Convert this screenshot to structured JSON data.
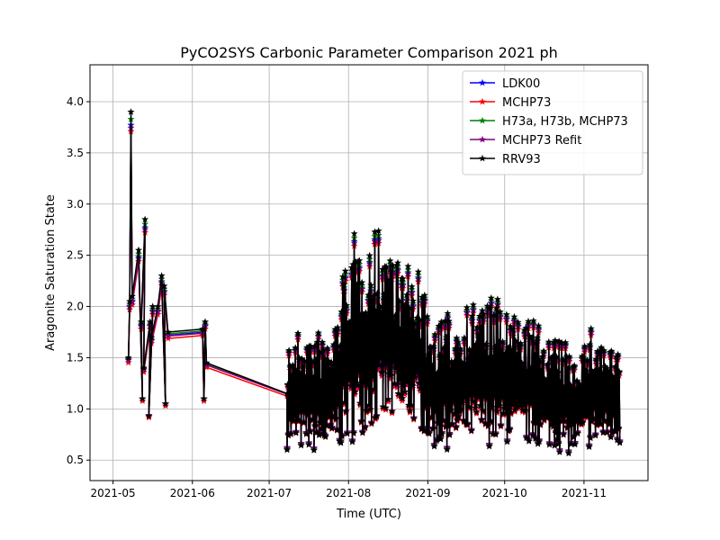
{
  "chart_data": {
    "type": "line",
    "title": "PyCO2SYS Carbonic Parameter Comparison 2021 ph",
    "xlabel": "Time (UTC)",
    "ylabel": "Aragonite Saturation State",
    "xlim": [
      "2021-04-22",
      "2021-11-26"
    ],
    "ylim": [
      0.3,
      4.36
    ],
    "grid": true,
    "legend_position": "top-right",
    "marker": "star",
    "x_ticks": [
      {
        "label": "2021-05",
        "date": "2021-05-01"
      },
      {
        "label": "2021-06",
        "date": "2021-06-01"
      },
      {
        "label": "2021-07",
        "date": "2021-07-01"
      },
      {
        "label": "2021-08",
        "date": "2021-08-01"
      },
      {
        "label": "2021-09",
        "date": "2021-09-01"
      },
      {
        "label": "2021-10",
        "date": "2021-10-01"
      },
      {
        "label": "2021-11",
        "date": "2021-11-01"
      }
    ],
    "y_ticks": [
      0.5,
      1.0,
      1.5,
      2.0,
      2.5,
      3.0,
      3.5,
      4.0
    ],
    "y_tick_labels": [
      "0.5",
      "1.0",
      "1.5",
      "2.0",
      "2.5",
      "3.0",
      "3.5",
      "4.0"
    ],
    "spring_timeline": [
      {
        "date": "2021-05-07",
        "v": 1.5
      },
      {
        "date": "2021-05-07",
        "v": 2.05
      },
      {
        "date": "2021-05-08",
        "v": 3.9
      },
      {
        "date": "2021-05-08",
        "v": 2.1
      },
      {
        "date": "2021-05-11",
        "v": 2.55
      },
      {
        "date": "2021-05-12",
        "v": 1.1
      },
      {
        "date": "2021-05-12",
        "v": 1.85
      },
      {
        "date": "2021-05-13",
        "v": 2.85
      },
      {
        "date": "2021-05-13",
        "v": 1.4
      },
      {
        "date": "2021-05-15",
        "v": 1.85
      },
      {
        "date": "2021-05-15",
        "v": 0.93
      },
      {
        "date": "2021-05-16",
        "v": 2.0
      },
      {
        "date": "2021-05-16",
        "v": 1.7
      },
      {
        "date": "2021-05-18",
        "v": 2.0
      },
      {
        "date": "2021-05-20",
        "v": 2.3
      },
      {
        "date": "2021-05-21",
        "v": 1.05
      },
      {
        "date": "2021-05-21",
        "v": 2.2
      },
      {
        "date": "2021-05-22",
        "v": 1.75
      },
      {
        "date": "2021-06-05",
        "v": 1.78
      },
      {
        "date": "2021-06-05",
        "v": 1.1
      },
      {
        "date": "2021-06-06",
        "v": 1.85
      },
      {
        "date": "2021-06-06",
        "v": 1.45
      },
      {
        "date": "2021-07-08",
        "v": 1.15
      }
    ],
    "dense_segment": {
      "start": "2021-07-08",
      "end": "2021-11-15"
    },
    "envelope": [
      {
        "date": "2021-07-08",
        "lo": 0.6,
        "hi": 1.7
      },
      {
        "date": "2021-07-15",
        "lo": 0.55,
        "hi": 1.85
      },
      {
        "date": "2021-07-25",
        "lo": 0.55,
        "hi": 1.75
      },
      {
        "date": "2021-08-01",
        "lo": 0.62,
        "hi": 2.7
      },
      {
        "date": "2021-08-08",
        "lo": 0.8,
        "hi": 2.75
      },
      {
        "date": "2021-08-17",
        "lo": 0.78,
        "hi": 2.85
      },
      {
        "date": "2021-08-22",
        "lo": 0.8,
        "hi": 2.45
      },
      {
        "date": "2021-08-28",
        "lo": 0.85,
        "hi": 2.4
      },
      {
        "date": "2021-09-02",
        "lo": 0.58,
        "hi": 1.9
      },
      {
        "date": "2021-09-10",
        "lo": 0.6,
        "hi": 1.95
      },
      {
        "date": "2021-09-20",
        "lo": 0.65,
        "hi": 2.15
      },
      {
        "date": "2021-09-28",
        "lo": 0.62,
        "hi": 2.1
      },
      {
        "date": "2021-10-05",
        "lo": 0.65,
        "hi": 1.95
      },
      {
        "date": "2021-10-12",
        "lo": 0.62,
        "hi": 1.9
      },
      {
        "date": "2021-10-20",
        "lo": 0.6,
        "hi": 1.75
      },
      {
        "date": "2021-10-28",
        "lo": 0.52,
        "hi": 1.6
      },
      {
        "date": "2021-11-05",
        "lo": 0.62,
        "hi": 1.85
      },
      {
        "date": "2021-11-15",
        "lo": 0.62,
        "hi": 1.55
      }
    ],
    "series": [
      {
        "name": "LDK00",
        "color": "#0000ff",
        "offset": 0.0,
        "scale": 0.955
      },
      {
        "name": "MCHP73",
        "color": "#ff0000",
        "offset": -0.02,
        "scale": 0.94
      },
      {
        "name": "H73a, H73b, MCHP73",
        "color": "#008000",
        "offset": 0.0,
        "scale": 0.975
      },
      {
        "name": "MCHP73 Refit",
        "color": "#800080",
        "offset": 0.0,
        "scale": 0.945
      },
      {
        "name": "RRV93",
        "color": "#000000",
        "offset": 0.0,
        "scale": 1.0
      }
    ]
  }
}
